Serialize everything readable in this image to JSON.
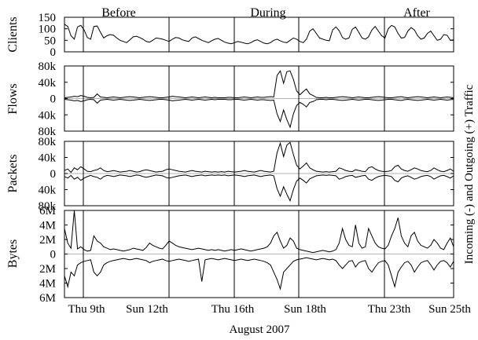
{
  "figure": {
    "xlabel": "August 2007",
    "right_label": "Incoming (-) and Outgoing (+) Traffic"
  },
  "chart_data": [
    {
      "type": "line",
      "panel": "clients",
      "ylabel": "Clients",
      "ylim": [
        0,
        150
      ],
      "yticks": [
        "150",
        "100",
        "50",
        "0"
      ],
      "period_labels": [
        "Before",
        "During",
        "After"
      ],
      "series": [
        {
          "values": [
            120,
            110,
            70,
            55,
            108,
            115,
            95,
            62,
            55,
            110,
            112,
            85,
            60,
            70,
            75,
            72,
            60,
            50,
            45,
            40,
            52,
            65,
            68,
            62,
            55,
            45,
            42,
            50,
            60,
            58,
            55,
            50,
            45,
            55,
            62,
            60,
            52,
            48,
            45,
            60,
            65,
            58,
            50,
            45,
            40,
            48,
            55,
            58,
            50,
            42,
            38,
            35,
            40,
            45,
            42,
            38,
            35,
            40,
            48,
            52,
            45,
            38,
            35,
            40,
            50,
            55,
            48,
            42,
            40,
            50,
            60,
            55,
            45,
            40,
            55,
            90,
            100,
            80,
            60,
            55,
            50,
            48,
            95,
            108,
            92,
            62,
            55,
            60,
            98,
            108,
            85,
            60,
            55,
            65,
            95,
            110,
            90,
            70,
            60,
            100,
            115,
            108,
            80,
            60,
            62,
            90,
            105,
            95,
            70,
            55,
            60,
            80,
            90,
            70,
            50,
            55,
            75,
            72,
            50,
            52
          ]
        }
      ]
    },
    {
      "type": "line",
      "panel": "flows",
      "ylabel": "Flows",
      "ylim": [
        -85000,
        85000
      ],
      "yticks": [
        "80k",
        "40k",
        "0",
        "40k",
        "80k"
      ],
      "series": [
        {
          "name": "outgoing",
          "values": [
            2000,
            3000,
            4000,
            6000,
            5000,
            8000,
            6000,
            3000,
            2000,
            3000,
            12000,
            4000,
            3000,
            2000,
            3000,
            4000,
            3000,
            2000,
            3000,
            4000,
            5000,
            4000,
            3000,
            2000,
            3000,
            4000,
            5000,
            4000,
            3000,
            2000,
            2000,
            3000,
            4000,
            6000,
            5000,
            4000,
            3000,
            2000,
            3000,
            4000,
            3000,
            2000,
            3000,
            4000,
            3000,
            2000,
            3000,
            2000,
            2000,
            2000,
            3000,
            3000,
            2000,
            2000,
            3000,
            4000,
            3000,
            2000,
            3000,
            4000,
            3000,
            3000,
            4000,
            5000,
            4000,
            60000,
            72000,
            40000,
            70000,
            72000,
            50000,
            20000,
            10000,
            18000,
            25000,
            12000,
            8000,
            3000,
            2000,
            2000,
            3000,
            2000,
            2000,
            3000,
            4000,
            5000,
            4000,
            3000,
            2000,
            3000,
            4000,
            3000,
            2000,
            2000,
            3000,
            4000,
            5000,
            4000,
            3000,
            2000,
            2000,
            3000,
            4000,
            5000,
            3000,
            2000,
            3000,
            4000,
            5000,
            4000,
            3000,
            2000,
            3000,
            4000,
            3000,
            2000,
            3000,
            4000,
            3000,
            2000
          ]
        },
        {
          "name": "incoming",
          "values": [
            -2000,
            -3000,
            -4000,
            -6000,
            -5000,
            -8000,
            -6000,
            -3000,
            -2000,
            -3000,
            -12000,
            -4000,
            -3000,
            -2000,
            -3000,
            -4000,
            -3000,
            -2000,
            -3000,
            -4000,
            -5000,
            -4000,
            -3000,
            -2000,
            -3000,
            -4000,
            -5000,
            -4000,
            -3000,
            -2000,
            -2000,
            -3000,
            -4000,
            -6000,
            -5000,
            -4000,
            -3000,
            -2000,
            -3000,
            -4000,
            -3000,
            -2000,
            -3000,
            -4000,
            -3000,
            -2000,
            -3000,
            -2000,
            -2000,
            -2000,
            -3000,
            -3000,
            -2000,
            -2000,
            -3000,
            -4000,
            -3000,
            -2000,
            -3000,
            -4000,
            -3000,
            -3000,
            -4000,
            -5000,
            -4000,
            -40000,
            -60000,
            -30000,
            -55000,
            -75000,
            -40000,
            -18000,
            -10000,
            -15000,
            -22000,
            -10000,
            -8000,
            -3000,
            -2000,
            -2000,
            -3000,
            -2000,
            -2000,
            -3000,
            -4000,
            -5000,
            -4000,
            -3000,
            -2000,
            -3000,
            -4000,
            -3000,
            -2000,
            -2000,
            -3000,
            -4000,
            -5000,
            -4000,
            -3000,
            -2000,
            -2000,
            -3000,
            -4000,
            -5000,
            -3000,
            -2000,
            -3000,
            -4000,
            -5000,
            -4000,
            -3000,
            -2000,
            -3000,
            -4000,
            -3000,
            -2000,
            -3000,
            -4000,
            -3000,
            -2000
          ]
        }
      ]
    },
    {
      "type": "line",
      "panel": "packets",
      "ylabel": "Packets",
      "ylim": [
        -85000,
        85000
      ],
      "yticks": [
        "80k",
        "40k",
        "0",
        "40k",
        "80k"
      ],
      "series": [
        {
          "name": "outgoing",
          "values": [
            8000,
            12000,
            3000,
            15000,
            10000,
            18000,
            12000,
            6000,
            5000,
            8000,
            10000,
            15000,
            8000,
            5000,
            6000,
            8000,
            6000,
            4000,
            5000,
            6000,
            8000,
            6000,
            4000,
            5000,
            8000,
            10000,
            8000,
            6000,
            4000,
            5000,
            6000,
            10000,
            12000,
            10000,
            8000,
            6000,
            5000,
            4000,
            6000,
            8000,
            6000,
            5000,
            4000,
            6000,
            5000,
            4000,
            5000,
            4000,
            5000,
            4000,
            6000,
            5000,
            4000,
            5000,
            6000,
            8000,
            6000,
            5000,
            4000,
            6000,
            8000,
            6000,
            5000,
            4000,
            6000,
            55000,
            80000,
            45000,
            75000,
            82000,
            50000,
            22000,
            12000,
            20000,
            28000,
            15000,
            10000,
            6000,
            5000,
            4000,
            5000,
            4000,
            5000,
            6000,
            15000,
            12000,
            8000,
            6000,
            5000,
            10000,
            8000,
            6000,
            5000,
            15000,
            18000,
            12000,
            8000,
            6000,
            5000,
            6000,
            8000,
            18000,
            22000,
            12000,
            8000,
            6000,
            10000,
            15000,
            12000,
            8000,
            6000,
            5000,
            8000,
            15000,
            10000,
            6000,
            5000,
            8000,
            12000,
            6000
          ]
        },
        {
          "name": "incoming",
          "values": [
            -8000,
            -12000,
            -5000,
            -15000,
            -10000,
            -18000,
            -12000,
            -8000,
            -5000,
            -8000,
            -10000,
            -15000,
            -8000,
            -5000,
            -6000,
            -8000,
            -6000,
            -4000,
            -5000,
            -6000,
            -8000,
            -6000,
            -4000,
            -5000,
            -8000,
            -10000,
            -8000,
            -6000,
            -4000,
            -5000,
            -6000,
            -10000,
            -12000,
            -10000,
            -8000,
            -6000,
            -5000,
            -4000,
            -6000,
            -8000,
            -6000,
            -5000,
            -4000,
            -6000,
            -5000,
            -4000,
            -5000,
            -4000,
            -5000,
            -4000,
            -6000,
            -5000,
            -4000,
            -5000,
            -6000,
            -8000,
            -6000,
            -5000,
            -4000,
            -6000,
            -8000,
            -6000,
            -5000,
            -4000,
            -6000,
            -40000,
            -60000,
            -35000,
            -55000,
            -72000,
            -42000,
            -20000,
            -12000,
            -18000,
            -25000,
            -14000,
            -10000,
            -6000,
            -5000,
            -4000,
            -5000,
            -4000,
            -5000,
            -6000,
            -15000,
            -12000,
            -8000,
            -6000,
            -5000,
            -10000,
            -8000,
            -6000,
            -5000,
            -15000,
            -18000,
            -12000,
            -8000,
            -6000,
            -5000,
            -6000,
            -8000,
            -18000,
            -22000,
            -12000,
            -8000,
            -6000,
            -10000,
            -15000,
            -12000,
            -8000,
            -6000,
            -5000,
            -8000,
            -15000,
            -10000,
            -6000,
            -5000,
            -8000,
            -12000,
            -6000
          ]
        }
      ]
    },
    {
      "type": "line",
      "panel": "bytes",
      "ylabel": "Bytes",
      "ylim": [
        -6000000,
        6000000
      ],
      "yticks": [
        "6M",
        "4M",
        "2M",
        "0",
        "2M",
        "4M",
        "6M"
      ],
      "series": [
        {
          "name": "outgoing",
          "values": [
            3500000,
            1500000,
            800000,
            6000000,
            700000,
            1000000,
            600000,
            400000,
            500000,
            2500000,
            1800000,
            1500000,
            1000000,
            800000,
            600000,
            700000,
            600000,
            500000,
            400000,
            500000,
            600000,
            800000,
            700000,
            600000,
            500000,
            900000,
            1500000,
            1200000,
            1000000,
            800000,
            700000,
            1200000,
            1800000,
            1500000,
            1200000,
            1000000,
            900000,
            800000,
            700000,
            600000,
            700000,
            800000,
            700000,
            600000,
            500000,
            600000,
            500000,
            600000,
            500000,
            400000,
            500000,
            600000,
            500000,
            600000,
            700000,
            600000,
            500000,
            400000,
            500000,
            600000,
            700000,
            800000,
            1000000,
            1500000,
            2500000,
            3000000,
            1800000,
            800000,
            1200000,
            2200000,
            1800000,
            800000,
            600000,
            500000,
            400000,
            300000,
            200000,
            300000,
            400000,
            500000,
            400000,
            300000,
            400000,
            600000,
            1500000,
            3500000,
            2000000,
            1200000,
            1000000,
            4000000,
            1500000,
            800000,
            1000000,
            3500000,
            2500000,
            1500000,
            1000000,
            800000,
            700000,
            1200000,
            2500000,
            3500000,
            5000000,
            2500000,
            1500000,
            1000000,
            2500000,
            3000000,
            1800000,
            1200000,
            1000000,
            800000,
            1200000,
            2000000,
            1500000,
            800000,
            600000,
            1500000,
            2200000,
            1000000
          ]
        },
        {
          "name": "incoming",
          "values": [
            -3000000,
            -4500000,
            -2500000,
            -3000000,
            -1500000,
            -1200000,
            -1000000,
            -900000,
            -800000,
            -2500000,
            -3000000,
            -2500000,
            -1500000,
            -1200000,
            -1000000,
            -900000,
            -800000,
            -700000,
            -600000,
            -700000,
            -800000,
            -700000,
            -600000,
            -700000,
            -800000,
            -900000,
            -1200000,
            -1000000,
            -900000,
            -800000,
            -700000,
            -900000,
            -1000000,
            -900000,
            -800000,
            -700000,
            -800000,
            -900000,
            -1000000,
            -900000,
            -800000,
            -700000,
            -3800000,
            -800000,
            -700000,
            -600000,
            -700000,
            -800000,
            -700000,
            -600000,
            -700000,
            -800000,
            -900000,
            -800000,
            -700000,
            -800000,
            -900000,
            -800000,
            -700000,
            -800000,
            -900000,
            -1000000,
            -1200000,
            -1500000,
            -2500000,
            -3500000,
            -4800000,
            -2500000,
            -2000000,
            -1500000,
            -1000000,
            -800000,
            -700000,
            -600000,
            -500000,
            -600000,
            -700000,
            -800000,
            -700000,
            -600000,
            -700000,
            -800000,
            -700000,
            -900000,
            -1500000,
            -2000000,
            -1500000,
            -1000000,
            -900000,
            -1800000,
            -1200000,
            -1000000,
            -900000,
            -2000000,
            -2500000,
            -1800000,
            -1200000,
            -1000000,
            -900000,
            -1500000,
            -3000000,
            -4500000,
            -2500000,
            -1800000,
            -1200000,
            -1000000,
            -1500000,
            -2500000,
            -1800000,
            -1200000,
            -1000000,
            -900000,
            -1500000,
            -2200000,
            -1500000,
            -1000000,
            -900000,
            -1200000,
            -1800000,
            -1000000
          ]
        }
      ]
    }
  ],
  "x_axis": {
    "ticks": [
      "Thu 9th",
      "Sun 12th",
      "Thu 16th",
      "Sun 18th",
      "Thu 23th",
      "Sun 25th"
    ]
  }
}
